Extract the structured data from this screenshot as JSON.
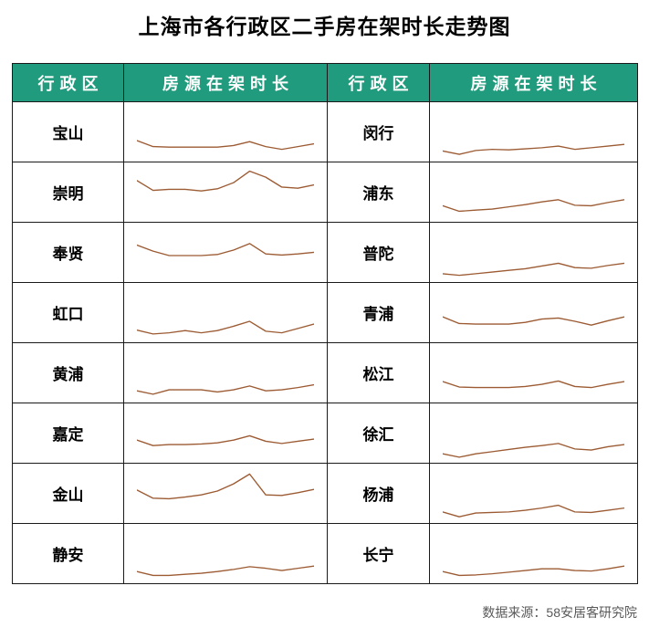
{
  "title": "上海市各行政区二手房在架时长走势图",
  "source": "数据来源：58安居客研究院",
  "table": {
    "headers": [
      "行政区",
      "房源在架时长",
      "行政区",
      "房源在架时长"
    ],
    "rows_per_column": 8
  },
  "colors": {
    "header_bg": "#219b7d",
    "header_text": "#ffffff",
    "spark": "#9c5b33",
    "border": "#1a1a1a",
    "title_text": "#000000",
    "source_text": "#595959"
  },
  "chart_data": {
    "type": "line",
    "title": "上海市各行政区二手房在架时长走势图",
    "note": "16 unlabeled sparklines (one per district); values are relative listing-duration heights on a shared 0-100 scale estimated from pixel positions; no axes or tick labels shown",
    "legend_position": "none",
    "grid": false,
    "ylim": [
      0,
      100
    ],
    "series": [
      {
        "name": "宝山",
        "values": [
          35,
          24,
          23,
          23,
          23,
          23,
          26,
          33,
          24,
          19,
          24,
          29
        ]
      },
      {
        "name": "崇明",
        "values": [
          72,
          54,
          56,
          56,
          53,
          57,
          68,
          89,
          78,
          60,
          58,
          64
        ]
      },
      {
        "name": "奉贤",
        "values": [
          64,
          53,
          45,
          45,
          45,
          47,
          55,
          67,
          48,
          46,
          48,
          51
        ]
      },
      {
        "name": "虹口",
        "values": [
          19,
          12,
          14,
          18,
          14,
          18,
          26,
          35,
          17,
          14,
          22,
          30
        ]
      },
      {
        "name": "黄浦",
        "values": [
          18,
          12,
          20,
          20,
          20,
          16,
          20,
          27,
          18,
          20,
          24,
          29
        ]
      },
      {
        "name": "嘉定",
        "values": [
          38,
          28,
          30,
          30,
          31,
          33,
          38,
          46,
          36,
          32,
          36,
          40
        ]
      },
      {
        "name": "金山",
        "values": [
          57,
          42,
          41,
          44,
          48,
          55,
          68,
          86,
          48,
          47,
          52,
          58
        ]
      },
      {
        "name": "静安",
        "values": [
          18,
          11,
          11,
          13,
          15,
          18,
          22,
          27,
          24,
          20,
          24,
          28
        ]
      },
      {
        "name": "闵行",
        "values": [
          16,
          10,
          17,
          19,
          18,
          20,
          22,
          25,
          19,
          22,
          25,
          28
        ]
      },
      {
        "name": "浦东",
        "values": [
          26,
          16,
          18,
          20,
          24,
          28,
          33,
          37,
          27,
          26,
          32,
          37
        ]
      },
      {
        "name": "普陀",
        "values": [
          12,
          9,
          12,
          15,
          18,
          21,
          26,
          31,
          23,
          22,
          27,
          31
        ]
      },
      {
        "name": "青浦",
        "values": [
          43,
          31,
          30,
          30,
          30,
          33,
          39,
          41,
          35,
          28,
          36,
          43
        ]
      },
      {
        "name": "松江",
        "values": [
          35,
          25,
          24,
          24,
          24,
          26,
          30,
          36,
          26,
          24,
          30,
          35
        ]
      },
      {
        "name": "徐汇",
        "values": [
          13,
          7,
          13,
          17,
          21,
          25,
          28,
          32,
          22,
          20,
          26,
          30
        ]
      },
      {
        "name": "杨浦",
        "values": [
          17,
          8,
          15,
          16,
          17,
          20,
          24,
          29,
          17,
          16,
          20,
          24
        ]
      },
      {
        "name": "长宁",
        "values": [
          18,
          11,
          12,
          14,
          17,
          20,
          23,
          23,
          20,
          19,
          23,
          28
        ]
      }
    ]
  }
}
